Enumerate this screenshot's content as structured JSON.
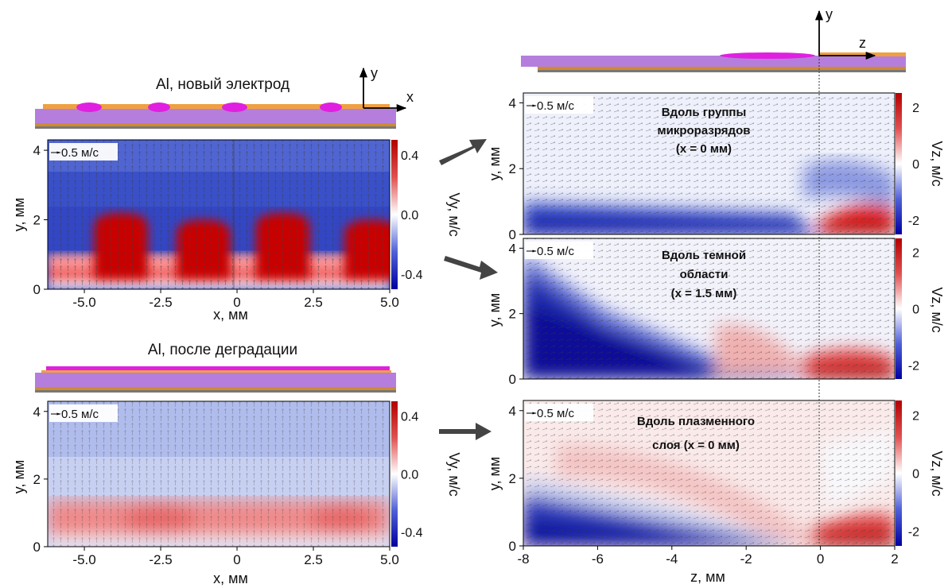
{
  "chart_data": [
    {
      "type": "heatmap",
      "panel": "top-left",
      "title": "Al, новый электрод",
      "xlabel": "x, мм",
      "ylabel": "y, мм",
      "xlim": [
        -6.2,
        5.0
      ],
      "ylim": [
        0,
        4.3
      ],
      "xticks": [
        "-5.0",
        "-2.5",
        "0",
        "2.5",
        "5.0"
      ],
      "yticks": [
        "0",
        "2",
        "4"
      ],
      "scale_arrow": "0.5 м/с",
      "colorbar": {
        "label": "Vy, м/с",
        "ticks": [
          "0.4",
          "0.0",
          "-0.4"
        ],
        "range": [
          -0.5,
          0.5
        ]
      },
      "diagram_axes": {
        "x": "x",
        "y": "y"
      },
      "plumes": [
        {
          "x": -3.8,
          "height": 2.2
        },
        {
          "x": -1.1,
          "height": 2.0
        },
        {
          "x": 1.5,
          "height": 2.2
        },
        {
          "x": 4.4,
          "height": 2.0
        }
      ]
    },
    {
      "type": "heatmap",
      "panel": "bottom-left",
      "title": "Al, после деградации",
      "xlabel": "x, мм",
      "ylabel": "y, мм",
      "xlim": [
        -6.2,
        5.0
      ],
      "ylim": [
        0,
        4.3
      ],
      "xticks": [
        "-5.0",
        "-2.5",
        "0",
        "2.5",
        "5.0"
      ],
      "yticks": [
        "0",
        "2",
        "4"
      ],
      "scale_arrow": "0.5 м/с",
      "colorbar": {
        "label": "Vy, м/с",
        "ticks": [
          "0.4",
          "0.0",
          "-0.4"
        ],
        "range": [
          -0.5,
          0.5
        ]
      },
      "red_band": [
        0.2,
        1.1
      ]
    },
    {
      "type": "heatmap",
      "panel": "right-1",
      "xlabel": "z, мм",
      "ylabel": "y, мм",
      "xlim": [
        -8,
        2
      ],
      "ylim": [
        0,
        4.3
      ],
      "yticks": [
        "0",
        "2",
        "4"
      ],
      "scale_arrow": "0.5 м/с",
      "annotation": [
        "Вдоль группы",
        "микроразрядов",
        "(x = 0 мм)"
      ],
      "colorbar": {
        "label": "Vz, м/с",
        "ticks": [
          "2",
          "0",
          "-2"
        ],
        "range": [
          -2.5,
          2.5
        ]
      },
      "diagram_axes": {
        "x": "z",
        "y": "y"
      }
    },
    {
      "type": "heatmap",
      "panel": "right-2",
      "xlabel": "z, мм",
      "ylabel": "y, мм",
      "xlim": [
        -8,
        2
      ],
      "ylim": [
        0,
        4.3
      ],
      "yticks": [
        "0",
        "2",
        "4"
      ],
      "scale_arrow": "0.5 м/с",
      "annotation": [
        "Вдоль темной",
        "области",
        "(x = 1.5 мм)"
      ],
      "colorbar": {
        "label": "Vz, м/с",
        "ticks": [
          "2",
          "0",
          "-2"
        ],
        "range": [
          -2.5,
          2.5
        ]
      }
    },
    {
      "type": "heatmap",
      "panel": "right-3",
      "xlabel": "z, мм",
      "ylabel": "y, мм",
      "xlim": [
        -8,
        2
      ],
      "ylim": [
        0,
        4.3
      ],
      "xticks": [
        "-8",
        "-6",
        "-4",
        "-2",
        "0",
        "2"
      ],
      "yticks": [
        "0",
        "2",
        "4"
      ],
      "scale_arrow": "0.5 м/с",
      "annotation": [
        "Вдоль плазменного",
        "слоя (x = 0 мм)"
      ],
      "colorbar": {
        "label": "Vz, м/с",
        "ticks": [
          "2",
          "0",
          "-2"
        ],
        "range": [
          -2.5,
          2.5
        ]
      }
    }
  ],
  "colors": {
    "negative": "#1a1aa6",
    "positive": "#c80000",
    "zero": "#ffffff",
    "electrode_purple": "#b57edc",
    "electrode_orange": "#f0a040",
    "plasma_magenta": "#e020e0",
    "arrow": "#505050"
  }
}
